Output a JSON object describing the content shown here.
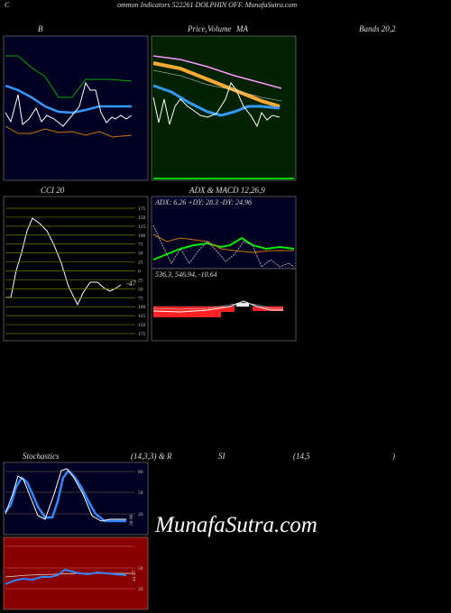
{
  "header": {
    "initial": "C",
    "title": "ommon Indicators 522261 DOLPHIN OFF. MunafaSutra.com"
  },
  "bollinger": {
    "label": "B",
    "bands_label": "Bands 20,2"
  },
  "price": {
    "label_price": "Price,",
    "label_volume": "Volume",
    "label_ma": "MA"
  },
  "cci": {
    "label": "CCI 20",
    "ticks": [
      "175",
      "150",
      "125",
      "100",
      "75",
      "50",
      "25",
      "0",
      "25",
      "50",
      "75",
      "100",
      "125",
      "150",
      "175"
    ],
    "value": "-47"
  },
  "adx": {
    "label": "ADX  & MACD 12,26,9",
    "readout": "ADX: 6.26  +DY: 28.3 -DY: 24.96"
  },
  "macd": {
    "readout": "536.3,  546.94,  -10.64"
  },
  "stochastics": {
    "label": "Stochastics",
    "params": "(14,3,3) & R",
    "rsi_label": "SI",
    "rsi_params": "(14,5",
    "close": ")",
    "ticks": [
      "80",
      "50",
      "20"
    ],
    "value": "20.96"
  },
  "rsi": {
    "ticks": [
      "50",
      "20"
    ],
    "value": "44.57"
  },
  "watermark": "MunafaSutra.com"
}
